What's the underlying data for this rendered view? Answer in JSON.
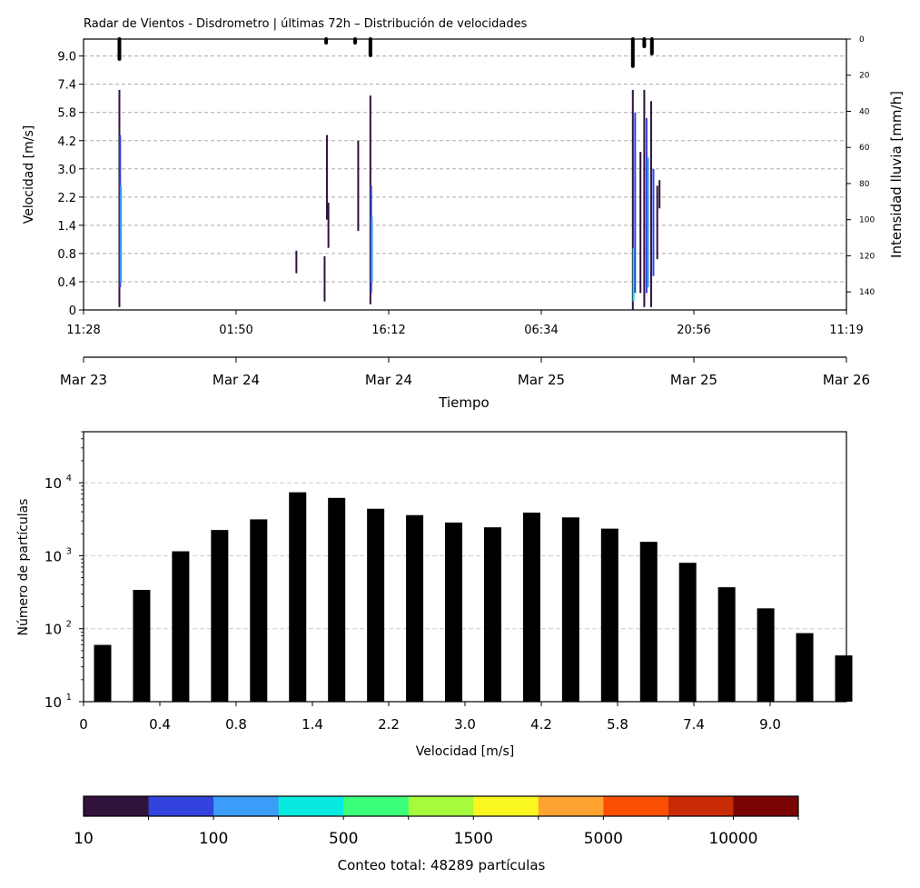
{
  "chart_data": [
    {
      "type": "heatmap",
      "title": "Radar de Vientos - Disdrometro | últimas 72h – Distribución de velocidades",
      "ylabel": "Velocidad [m/s]",
      "ylabel_right": "Intensidad lluvia [mm/h]",
      "xlabel": "Tiempo",
      "y_ticks": [
        "0",
        "0.4",
        "0.8",
        "1.4",
        "2.2",
        "3.0",
        "4.2",
        "5.8",
        "7.4",
        "9.0"
      ],
      "y_right_ticks": [
        "0",
        "20",
        "40",
        "60",
        "80",
        "100",
        "120",
        "140"
      ],
      "y_right_values": [
        0,
        20,
        40,
        60,
        80,
        100,
        120,
        140
      ],
      "y_right_lim": [
        150,
        0
      ],
      "time_ticks": [
        "11:28",
        "01:50",
        "16:12",
        "06:34",
        "20:56",
        "11:19"
      ],
      "date_ticks": [
        "Mar 23",
        "Mar 24",
        "Mar 24",
        "Mar 25",
        "Mar 25",
        "Mar 26"
      ],
      "grid": "horizontal dashed",
      "rain_events": [
        {
          "t": 0.047,
          "rain": 11
        },
        {
          "t": 0.318,
          "rain": 2
        },
        {
          "t": 0.356,
          "rain": 2
        },
        {
          "t": 0.376,
          "rain": 9
        },
        {
          "t": 0.72,
          "rain": 15
        },
        {
          "t": 0.735,
          "rain": 4
        },
        {
          "t": 0.745,
          "rain": 8
        }
      ]
    },
    {
      "type": "bar",
      "xlabel": "Velocidad [m/s]",
      "ylabel": "Número de partículas",
      "y_scale": "log",
      "ylim": [
        10,
        50000
      ],
      "y_ticks": [
        {
          "base": "10",
          "exp": "1"
        },
        {
          "base": "10",
          "exp": "2"
        },
        {
          "base": "10",
          "exp": "3"
        },
        {
          "base": "10",
          "exp": "4"
        }
      ],
      "x_ticks": [
        "0",
        "0.4",
        "0.8",
        "1.4",
        "2.2",
        "3.0",
        "4.2",
        "5.8",
        "7.4",
        "9.0"
      ],
      "values": [
        60,
        340,
        1150,
        2250,
        3150,
        7400,
        6200,
        4400,
        3600,
        2850,
        2450,
        3900,
        3350,
        2350,
        1550,
        800,
        370,
        190,
        87,
        43
      ],
      "bar_color": "#000000",
      "grid": "horizontal dashed"
    }
  ],
  "colorbar": {
    "tick_labels": [
      "10",
      "100",
      "500",
      "1500",
      "5000",
      "10000"
    ],
    "label": "Conteo total: 48289 partículas",
    "colors": [
      "#30123b",
      "#3244dd",
      "#3a9df8",
      "#07eae0",
      "#3cff7a",
      "#a6fc3c",
      "#f9f620",
      "#fea332",
      "#fd4f02",
      "#c92b04",
      "#7a0403"
    ]
  }
}
